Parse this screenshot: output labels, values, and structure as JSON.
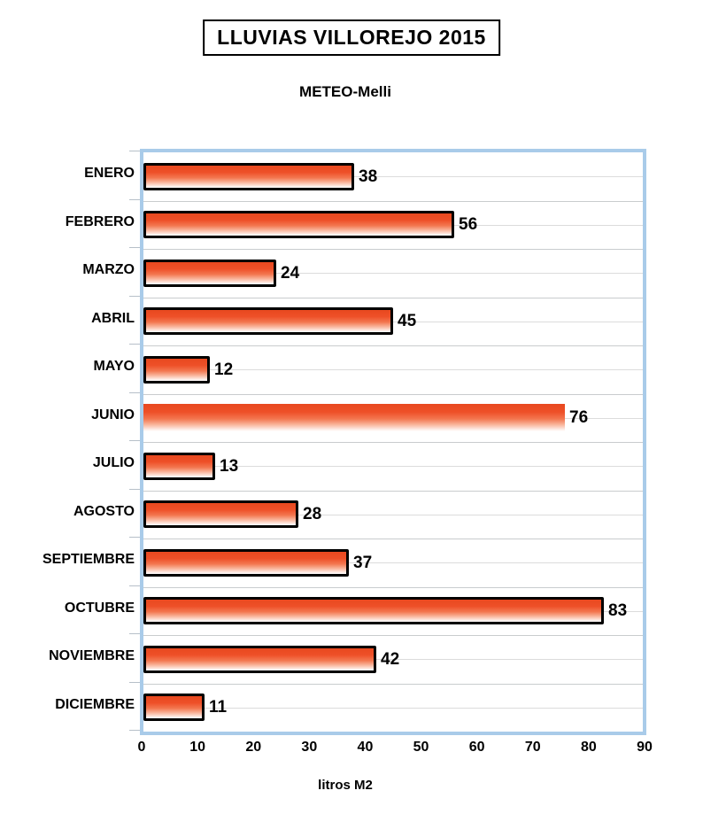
{
  "header": {
    "title": "LLUVIAS VILLOREJO 2015",
    "subtitle": "METEO-Melli"
  },
  "chart_data": {
    "type": "bar",
    "orientation": "horizontal",
    "title": "LLUVIAS VILLOREJO 2015",
    "subtitle": "METEO-Melli",
    "categories": [
      "ENERO",
      "FEBRERO",
      "MARZO",
      "ABRIL",
      "MAYO",
      "JUNIO",
      "JULIO",
      "AGOSTO",
      "SEPTIEMBRE",
      "OCTUBRE",
      "NOVIEMBRE",
      "DICIEMBRE"
    ],
    "values": [
      38,
      56,
      24,
      45,
      12,
      76,
      13,
      28,
      37,
      83,
      42,
      11
    ],
    "xlabel": "litros M2",
    "ylabel": "",
    "xlim": [
      0,
      90
    ],
    "xticks": [
      0,
      10,
      20,
      30,
      40,
      50,
      60,
      70,
      80,
      90
    ],
    "grid": true,
    "legend": false,
    "highlight_index": 5,
    "highlight_style": "bar drawn without black outline (JUNIO)",
    "colors": {
      "bar_gradient_top": "#e8481f",
      "bar_gradient_bottom": "#ffffff",
      "bar_border": "#000000",
      "plot_border": "#a9cbe9",
      "gridline": "#d6d6d6",
      "text": "#000000",
      "background": "#ffffff"
    }
  }
}
